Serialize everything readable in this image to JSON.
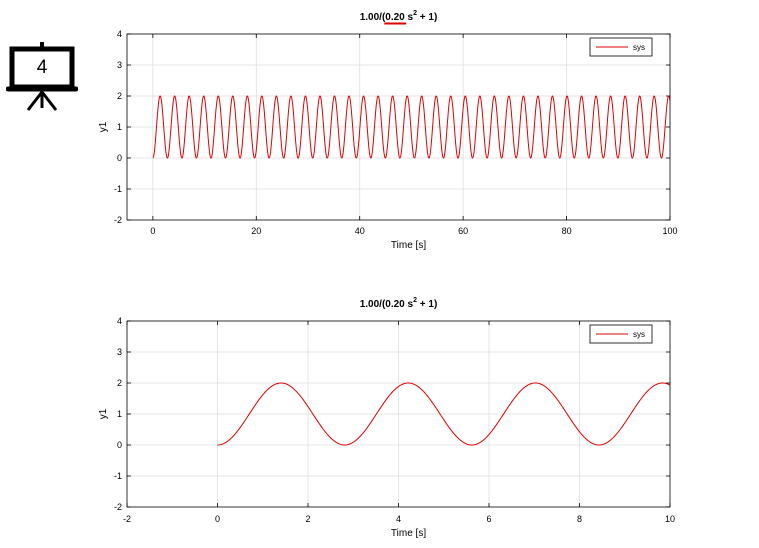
{
  "slide_badge": {
    "number": "4",
    "icon": "presentation-board-icon"
  },
  "colors": {
    "series": "#e00000",
    "grid": "#dedede",
    "axis": "#000000",
    "underline": "#e00000"
  },
  "chart_data": [
    {
      "type": "line",
      "title": {
        "prefix": "1.00/(",
        "coef": "0.20",
        "var": " s",
        "exp": "2",
        "suffix": " + 1)"
      },
      "xlabel": "Time [s]",
      "ylabel": "y1",
      "xlim": [
        -5,
        100
      ],
      "ylim": [
        -2,
        4
      ],
      "xticks": [
        0,
        20,
        40,
        60,
        80,
        100
      ],
      "yticks": [
        -2,
        -1,
        0,
        1,
        2,
        3,
        4
      ],
      "grid": true,
      "legend": {
        "position": "top-right",
        "entries": [
          "sys"
        ]
      },
      "series": [
        {
          "name": "sys",
          "function": "1 - cos(t / sqrt(0.20))",
          "t_range": [
            0,
            100
          ]
        }
      ]
    },
    {
      "type": "line",
      "title": {
        "prefix": "1.00/(",
        "coef": "0.20",
        "var": " s",
        "exp": "2",
        "suffix": " + 1)"
      },
      "xlabel": "Time [s]",
      "ylabel": "y1",
      "xlim": [
        -2,
        10
      ],
      "ylim": [
        -2,
        4
      ],
      "xticks": [
        -2,
        0,
        2,
        4,
        6,
        8,
        10
      ],
      "yticks": [
        -2,
        -1,
        0,
        1,
        2,
        3,
        4
      ],
      "grid": true,
      "legend": {
        "position": "top-right",
        "entries": [
          "sys"
        ]
      },
      "series": [
        {
          "name": "sys",
          "function": "1 - cos(t / sqrt(0.20))",
          "t_range": [
            0,
            10
          ]
        }
      ]
    }
  ]
}
